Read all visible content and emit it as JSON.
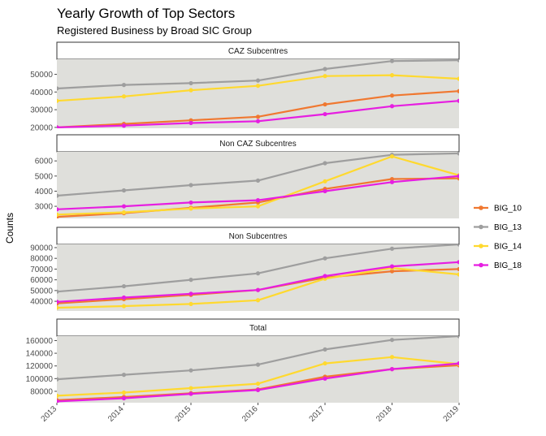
{
  "chart_data": {
    "type": "line",
    "title": "Yearly Growth of Top Sectors",
    "subtitle": "Registered Business by Broad SIC Group",
    "xlabel": "",
    "ylabel": "Counts",
    "x": [
      2013,
      2014,
      2015,
      2016,
      2017,
      2018,
      2019
    ],
    "x_tick_labels": [
      "2013",
      "2014",
      "2015",
      "2016",
      "2017",
      "2018",
      "2019"
    ],
    "legend_position": "right",
    "series_styles": [
      {
        "name": "BIG_10",
        "color": "#f07830"
      },
      {
        "name": "BIG_13",
        "color": "#9e9e9e"
      },
      {
        "name": "BIG_14",
        "color": "#ffd92f"
      },
      {
        "name": "BIG_18",
        "color": "#e61ee1"
      }
    ],
    "panels": [
      {
        "label": "CAZ Subcentres",
        "ylim": [
          19500,
          58500
        ],
        "yticks": [
          20000,
          30000,
          40000,
          50000
        ],
        "ytick_labels": [
          "20000",
          "30000",
          "40000",
          "50000"
        ],
        "series": [
          {
            "name": "BIG_10",
            "values": [
              20000,
              22000,
              24000,
              26000,
              33000,
              38000,
              40500
            ]
          },
          {
            "name": "BIG_13",
            "values": [
              42000,
              44000,
              45000,
              46500,
              53000,
              57500,
              58000
            ]
          },
          {
            "name": "BIG_14",
            "values": [
              35000,
              37500,
              41000,
              43500,
              49000,
              49500,
              47500
            ]
          },
          {
            "name": "BIG_18",
            "values": [
              20000,
              21000,
              22500,
              23500,
              27500,
              32000,
              35000
            ]
          }
        ]
      },
      {
        "label": "Non CAZ Subcentres",
        "ylim": [
          2200,
          6600
        ],
        "yticks": [
          3000,
          4000,
          5000,
          6000
        ],
        "ytick_labels": [
          "3000",
          "4000",
          "5000",
          "6000"
        ],
        "series": [
          {
            "name": "BIG_10",
            "values": [
              2300,
              2550,
              2900,
              3250,
              4150,
              4800,
              4850
            ]
          },
          {
            "name": "BIG_13",
            "values": [
              3700,
              4050,
              4400,
              4700,
              5850,
              6400,
              6500
            ]
          },
          {
            "name": "BIG_14",
            "values": [
              2450,
              2600,
              2850,
              3000,
              4650,
              6300,
              5050
            ]
          },
          {
            "name": "BIG_18",
            "values": [
              2800,
              3000,
              3250,
              3400,
              4000,
              4600,
              5000
            ]
          }
        ]
      },
      {
        "label": "Non Subcentres",
        "ylim": [
          31000,
          93000
        ],
        "yticks": [
          40000,
          50000,
          60000,
          70000,
          80000,
          90000
        ],
        "ytick_labels": [
          "40000",
          "50000",
          "60000",
          "70000",
          "80000",
          "90000"
        ],
        "series": [
          {
            "name": "BIG_10",
            "values": [
              38000,
              42000,
              46000,
              50500,
              62000,
              68000,
              70000
            ]
          },
          {
            "name": "BIG_13",
            "values": [
              49000,
              54000,
              60000,
              66000,
              80000,
              89000,
              93000
            ]
          },
          {
            "name": "BIG_14",
            "values": [
              34000,
              35500,
              37500,
              41000,
              61000,
              71000,
              65000
            ]
          },
          {
            "name": "BIG_18",
            "values": [
              39500,
              43500,
              47000,
              50500,
              63500,
              72500,
              76500
            ]
          }
        ]
      },
      {
        "label": "Total",
        "ylim": [
          62000,
          167000
        ],
        "yticks": [
          80000,
          100000,
          120000,
          140000,
          160000
        ],
        "ytick_labels": [
          "80000",
          "100000",
          "120000",
          "140000",
          "160000"
        ],
        "series": [
          {
            "name": "BIG_10",
            "values": [
              66000,
              71000,
              77000,
              83000,
              103000,
              115000,
              121000
            ]
          },
          {
            "name": "BIG_13",
            "values": [
              99000,
              106000,
              113000,
              122000,
              146000,
              161000,
              167000
            ]
          },
          {
            "name": "BIG_14",
            "values": [
              73000,
              78000,
              85000,
              92000,
              124000,
              134000,
              123000
            ]
          },
          {
            "name": "BIG_18",
            "values": [
              64000,
              69000,
              76000,
              82000,
              100000,
              115000,
              124000
            ]
          }
        ]
      }
    ]
  }
}
